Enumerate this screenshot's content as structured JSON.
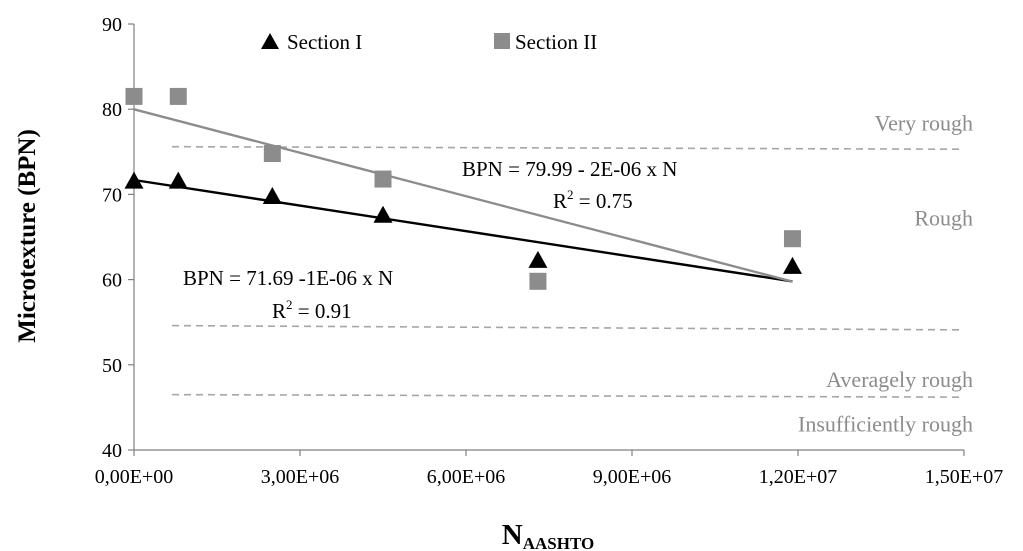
{
  "chart_data": {
    "type": "scatter",
    "xlabel": "N",
    "xlabel_sub": "AASHTO",
    "ylabel": "Microtexture (BPN)",
    "xlim": [
      0,
      15000000
    ],
    "ylim": [
      40,
      90
    ],
    "x_ticks": [
      0,
      3000000,
      6000000,
      9000000,
      12000000,
      15000000
    ],
    "x_tick_labels": [
      "0,00E+00",
      "3,00E+06",
      "6,00E+06",
      "9,00E+06",
      "1,20E+07",
      "1,50E+07"
    ],
    "y_ticks": [
      40,
      50,
      60,
      70,
      80,
      90
    ],
    "y_tick_labels": [
      "40",
      "50",
      "60",
      "70",
      "80",
      "90"
    ],
    "grid": false,
    "legend_position": "top",
    "series": [
      {
        "name": "Section I",
        "marker": "triangle",
        "color": "#000000",
        "x": [
          0,
          800000,
          2500000,
          4500000,
          7300000,
          11900000
        ],
        "y": [
          71.5,
          71.5,
          69.7,
          67.5,
          62.2,
          61.5
        ],
        "trend": {
          "intercept": 71.69,
          "slope": -1e-06,
          "x_range": [
            0,
            11900000
          ],
          "color": "#000000"
        },
        "equation": "BPN = 71.69 -1E-06 x N",
        "r2_prefix": "R",
        "r2_suffix": " = 0.91"
      },
      {
        "name": "Section II",
        "marker": "square",
        "color": "#8c8c8c",
        "x": [
          0,
          800000,
          2500000,
          4500000,
          7300000,
          11900000
        ],
        "y": [
          81.5,
          81.5,
          74.8,
          71.8,
          59.8,
          64.8
        ],
        "trend": {
          "intercept": 79.99,
          "slope": -1.7e-06,
          "x_range": [
            0,
            11900000
          ],
          "color": "#8c8c8c"
        },
        "equation": "BPN = 79.99 - 2E-06 x N",
        "r2_prefix": "R",
        "r2_suffix": " = 0.75"
      }
    ],
    "reference_lines": [
      {
        "y0": 75.6,
        "y1": 75.3,
        "color": "#a6a6a6"
      },
      {
        "y0": 54.6,
        "y1": 54.1,
        "color": "#a6a6a6"
      },
      {
        "y0": 46.5,
        "y1": 46.2,
        "color": "#a6a6a6"
      }
    ],
    "zone_labels": [
      {
        "text": "Very rough",
        "y": 78.3
      },
      {
        "text": "Rough",
        "y": 67.2
      },
      {
        "text": "Averagely rough",
        "y": 48.2
      },
      {
        "text": "Insufficiently rough",
        "y": 43.0
      }
    ]
  }
}
